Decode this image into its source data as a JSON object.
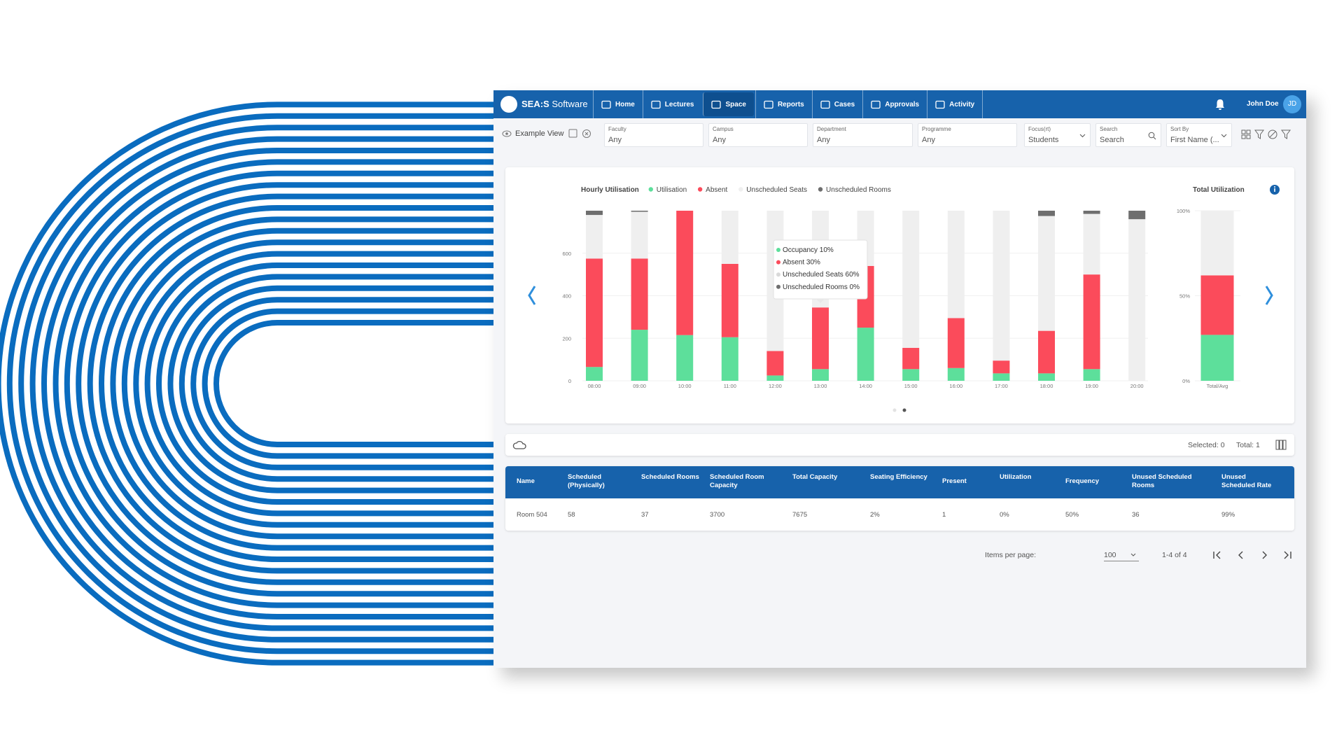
{
  "nav": {
    "brand": "SEA:S",
    "brand_suffix": "Software",
    "items": [
      "Home",
      "Lectures",
      "Space",
      "Reports",
      "Cases",
      "Approvals",
      "Activity"
    ],
    "user": "John Doe",
    "initials": "JD"
  },
  "filters": {
    "view": "Example View",
    "fields": [
      {
        "label": "Faculty",
        "value": "Any"
      },
      {
        "label": "Campus",
        "value": "Any"
      },
      {
        "label": "Department",
        "value": "Any"
      },
      {
        "label": "Programme",
        "value": "Any"
      },
      {
        "label": "Focus(rt)",
        "value": "Students"
      },
      {
        "label": "Search",
        "value": "Search"
      },
      {
        "label": "Sort By",
        "value": "First Name (..."
      }
    ]
  },
  "chart_data": [
    {
      "type": "bar",
      "stacked": true,
      "title": "Hourly Utilisation",
      "legend": "top-left",
      "grid": true,
      "categories": [
        "08:00",
        "09:00",
        "10:00",
        "11:00",
        "12:00",
        "13:00",
        "14:00",
        "15:00",
        "16:00",
        "17:00",
        "18:00",
        "19:00",
        "20:00"
      ],
      "series": [
        {
          "name": "Utilisation",
          "color": "#5ddf9b",
          "values": [
            65,
            240,
            215,
            205,
            25,
            55,
            250,
            55,
            60,
            35,
            35,
            55,
            0
          ]
        },
        {
          "name": "Absent",
          "color": "#fb4b5b",
          "values": [
            510,
            335,
            585,
            345,
            115,
            290,
            290,
            100,
            235,
            60,
            200,
            445,
            0
          ]
        },
        {
          "name": "Unscheduled Seats",
          "color": "#efefef",
          "values": [
            205,
            220,
            0,
            250,
            660,
            455,
            260,
            645,
            505,
            705,
            540,
            285,
            760
          ]
        },
        {
          "name": "Unscheduled Rooms",
          "color": "#6e6e6e",
          "values": [
            20,
            5,
            0,
            0,
            0,
            0,
            0,
            0,
            0,
            0,
            25,
            15,
            40
          ]
        }
      ],
      "ylim": [
        0,
        800
      ],
      "yticks": [
        0,
        200,
        400,
        600
      ]
    },
    {
      "type": "bar",
      "stacked": true,
      "title": "Total Utilization",
      "grid": true,
      "categories": [
        "Total/Avg"
      ],
      "series": [
        {
          "color": "#5ddf9b",
          "values": [
            27
          ]
        },
        {
          "color": "#fb4b5b",
          "values": [
            35
          ]
        },
        {
          "color": "#efefef",
          "values": [
            38
          ]
        },
        {
          "color": "#6e6e6e",
          "values": [
            0
          ]
        }
      ],
      "ylim": [
        0,
        100
      ],
      "yticks": [
        {
          "value": 0,
          "label": "0%"
        },
        {
          "value": 50,
          "label": "50%"
        },
        {
          "value": 100,
          "label": "100%"
        }
      ]
    }
  ],
  "tooltip": [
    "Occupancy 10%",
    "Absent 30%",
    "Unscheduled Seats 60%",
    "Unscheduled Rooms 0%"
  ],
  "toolbar": {
    "selected": "Selected: 0",
    "total": "Total: 1"
  },
  "table": {
    "columns": [
      "Name",
      "Scheduled (Physically)",
      "Scheduled Rooms",
      "Scheduled Room Capacity",
      "Total Capacity",
      "Seating Efficiency",
      "Present",
      "Utilization",
      "Frequency",
      "Unused Scheduled Rooms",
      "Unused Scheduled Rate"
    ],
    "rows": [
      [
        "Room 504",
        "58",
        "37",
        "3700",
        "7675",
        "2%",
        "1",
        "0%",
        "50%",
        "36",
        "99%"
      ]
    ]
  },
  "pagination": {
    "label": "Items per page:",
    "page_size": "100",
    "range": "1-4 of 4"
  }
}
